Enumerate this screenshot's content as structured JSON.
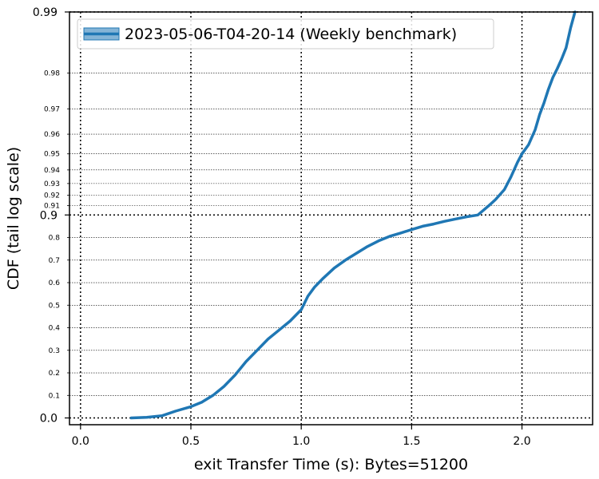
{
  "chart_data": {
    "type": "line",
    "title": "",
    "xlabel": "exit Transfer Time (s): Bytes=51200",
    "ylabel": "CDF (tail log scale)",
    "xlim": [
      -0.05,
      2.32
    ],
    "x_ticks": [
      {
        "value": 0.0,
        "label": "0.0"
      },
      {
        "value": 0.5,
        "label": "0.5"
      },
      {
        "value": 1.0,
        "label": "1.0"
      },
      {
        "value": 1.5,
        "label": "1.5"
      },
      {
        "value": 2.0,
        "label": "2.0"
      }
    ],
    "y_scale": "tail-log",
    "ylim": [
      -0.03,
      0.99
    ],
    "y_major_ticks": [
      {
        "value": 0.0,
        "label": "0.0"
      },
      {
        "value": 0.9,
        "label": "0.9"
      },
      {
        "value": 0.99,
        "label": "0.99"
      }
    ],
    "y_minor_ticks": [
      {
        "value": 0.1,
        "label": "0.1"
      },
      {
        "value": 0.2,
        "label": "0.2"
      },
      {
        "value": 0.3,
        "label": "0.3"
      },
      {
        "value": 0.4,
        "label": "0.4"
      },
      {
        "value": 0.5,
        "label": "0.5"
      },
      {
        "value": 0.6,
        "label": "0.6"
      },
      {
        "value": 0.7,
        "label": "0.7"
      },
      {
        "value": 0.8,
        "label": "0.8"
      },
      {
        "value": 0.91,
        "label": "0.91"
      },
      {
        "value": 0.92,
        "label": "0.92"
      },
      {
        "value": 0.93,
        "label": "0.93"
      },
      {
        "value": 0.94,
        "label": "0.94"
      },
      {
        "value": 0.95,
        "label": "0.95"
      },
      {
        "value": 0.96,
        "label": "0.96"
      },
      {
        "value": 0.97,
        "label": "0.97"
      },
      {
        "value": 0.98,
        "label": "0.98"
      }
    ],
    "grid": true,
    "legend": {
      "position": "top-left"
    },
    "series": [
      {
        "name": "2023-05-06-T04-20-14 (Weekly benchmark)",
        "color": "#1f77b4",
        "x": [
          0.23,
          0.3,
          0.37,
          0.43,
          0.5,
          0.55,
          0.6,
          0.65,
          0.7,
          0.75,
          0.8,
          0.85,
          0.9,
          0.95,
          1.0,
          1.03,
          1.06,
          1.1,
          1.15,
          1.2,
          1.25,
          1.3,
          1.35,
          1.4,
          1.45,
          1.5,
          1.55,
          1.6,
          1.65,
          1.7,
          1.75,
          1.8,
          1.85,
          1.88,
          1.92,
          1.95,
          1.98,
          2.0,
          2.03,
          2.06,
          2.08,
          2.1,
          2.12,
          2.14,
          2.16,
          2.18,
          2.2,
          2.22,
          2.24
        ],
        "y": [
          0.0,
          0.003,
          0.01,
          0.03,
          0.05,
          0.07,
          0.1,
          0.14,
          0.19,
          0.25,
          0.3,
          0.35,
          0.39,
          0.43,
          0.48,
          0.54,
          0.58,
          0.62,
          0.665,
          0.7,
          0.73,
          0.76,
          0.785,
          0.805,
          0.82,
          0.835,
          0.85,
          0.86,
          0.872,
          0.882,
          0.892,
          0.9,
          0.91,
          0.916,
          0.925,
          0.935,
          0.945,
          0.95,
          0.955,
          0.962,
          0.968,
          0.972,
          0.976,
          0.979,
          0.981,
          0.983,
          0.985,
          0.988,
          0.99
        ]
      }
    ]
  }
}
